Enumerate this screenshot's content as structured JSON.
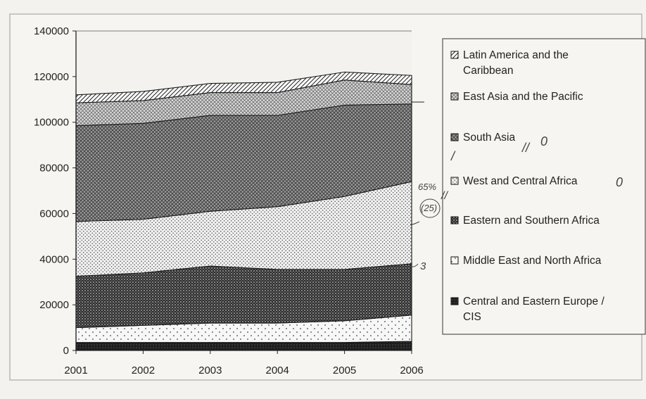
{
  "chart_data": {
    "type": "area",
    "stacked": true,
    "x": [
      2001,
      2002,
      2003,
      2004,
      2005,
      2006
    ],
    "x_tick_labels": [
      "2001",
      "2002",
      "2003",
      "2004",
      "2005",
      "2006"
    ],
    "ylim": [
      0,
      140000
    ],
    "y_ticks": [
      0,
      20000,
      40000,
      60000,
      80000,
      100000,
      120000,
      140000
    ],
    "y_tick_labels": [
      "0",
      "20000",
      "40000",
      "60000",
      "80000",
      "100000",
      "120000",
      "140000"
    ],
    "grid": false,
    "legend_position": "right",
    "series": [
      {
        "name": "Central and Eastern Europe / CIS",
        "values": [
          3500,
          3500,
          3500,
          3500,
          3500,
          4000
        ],
        "color": "#2a2a2a",
        "pattern": "dense-dark"
      },
      {
        "name": "Middle East and North Africa",
        "values": [
          6500,
          7500,
          8500,
          8500,
          9500,
          11500
        ],
        "color": "#f6f6f6",
        "pattern": "sparse-dots"
      },
      {
        "name": "Eastern and Southern Africa",
        "values": [
          22500,
          23000,
          25000,
          23500,
          22500,
          22500
        ],
        "color": "#3c3c3c",
        "pattern": "dark-dots"
      },
      {
        "name": "West and Central Africa",
        "values": [
          24000,
          23500,
          24000,
          27500,
          32000,
          36000
        ],
        "color": "#ededed",
        "pattern": "fine-dots"
      },
      {
        "name": "South Asia",
        "values": [
          42000,
          42000,
          42000,
          40000,
          40000,
          34000
        ],
        "color": "#8a8a8a",
        "pattern": "crosshatch"
      },
      {
        "name": "East Asia and the Pacific",
        "values": [
          10000,
          10000,
          10000,
          10000,
          11000,
          8500
        ],
        "color": "#c8c8c8",
        "pattern": "light-crosshatch"
      },
      {
        "name": "Latin America  and the Caribbean",
        "values": [
          3500,
          4000,
          4000,
          4500,
          3500,
          4000
        ],
        "color": "#ffffff",
        "pattern": "diagonal"
      }
    ],
    "legend_order": [
      "Latin America  and the Caribbean",
      "East Asia and the Pacific",
      "South Asia",
      "West and Central Africa",
      "Eastern and Southern Africa",
      "Middle East and North Africa",
      "Central and Eastern Europe / CIS"
    ],
    "annotations": [
      "0",
      "//",
      "/",
      "0",
      "//",
      "65%",
      "(25)",
      "3"
    ]
  }
}
